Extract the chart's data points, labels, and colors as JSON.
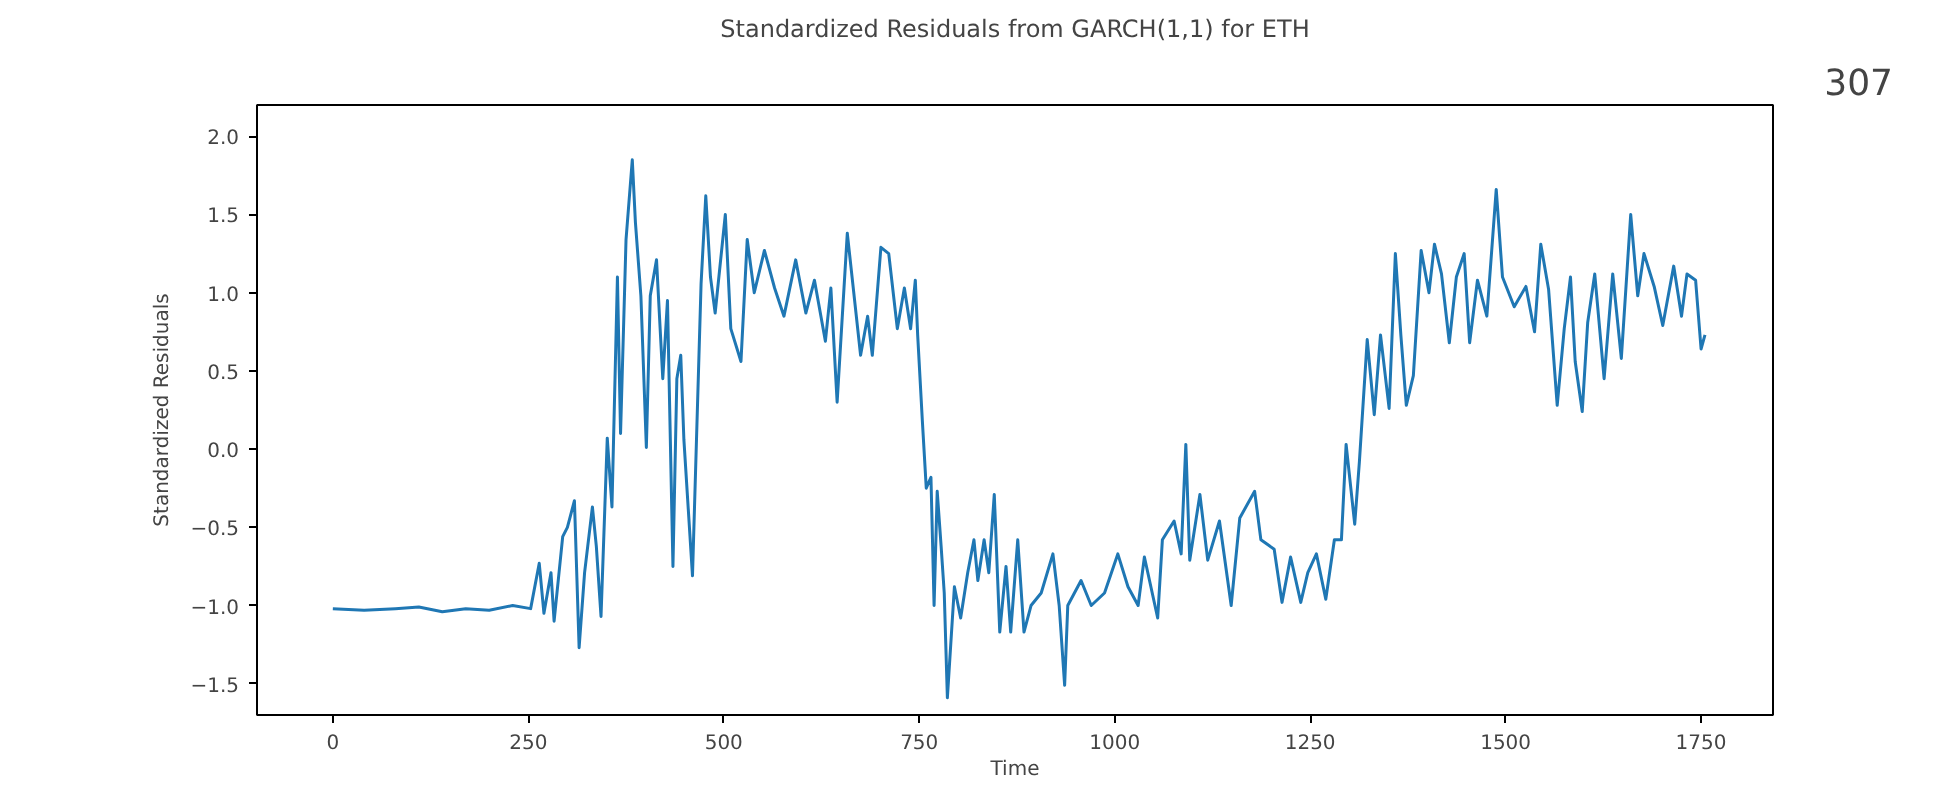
{
  "chart_data": {
    "type": "line",
    "title": "Standardized Residuals from GARCH(1,1) for ETH",
    "xlabel": "Time",
    "ylabel": "Standardized Residuals",
    "annotations": [
      "307"
    ],
    "x": [
      0,
      40,
      80,
      110,
      140,
      170,
      200,
      230,
      253,
      264,
      270,
      279,
      283,
      294,
      300,
      309,
      315,
      322,
      332,
      337,
      343,
      351,
      357,
      364,
      368,
      375,
      383,
      387,
      394,
      401,
      406,
      414,
      422,
      428,
      435,
      440,
      445,
      449,
      460,
      471,
      477,
      483,
      489,
      502,
      509,
      522,
      530,
      539,
      552,
      565,
      577,
      592,
      605,
      616,
      630,
      637,
      645,
      658,
      675,
      684,
      690,
      701,
      711,
      722,
      731,
      739,
      745,
      748,
      754,
      759,
      765,
      769,
      773,
      778,
      782,
      786,
      795,
      803,
      812,
      820,
      825,
      833,
      839,
      846,
      853,
      861,
      867,
      876,
      884,
      893,
      906,
      921,
      929,
      936,
      940,
      957,
      970,
      987,
      1004,
      1017,
      1030,
      1038,
      1055,
      1061,
      1076,
      1085,
      1091,
      1096,
      1109,
      1119,
      1134,
      1149,
      1160,
      1179,
      1187,
      1204,
      1214,
      1225,
      1238,
      1247,
      1258,
      1270,
      1281,
      1290,
      1296,
      1307,
      1313,
      1323,
      1332,
      1340,
      1351,
      1359,
      1366,
      1373,
      1382,
      1392,
      1402,
      1409,
      1418,
      1428,
      1437,
      1447,
      1454,
      1464,
      1476,
      1488,
      1496,
      1511,
      1526,
      1537,
      1545,
      1555,
      1566,
      1575,
      1583,
      1589,
      1598,
      1605,
      1614,
      1626,
      1637,
      1648,
      1660,
      1669,
      1677,
      1690,
      1701,
      1715,
      1725,
      1732,
      1743,
      1750,
      1755
    ],
    "series": [
      {
        "color": "#1f77b4",
        "values": [
          -1.02,
          -1.03,
          -1.02,
          -1.01,
          -1.04,
          -1.02,
          -1.03,
          -1.0,
          -1.02,
          -0.73,
          -1.05,
          -0.79,
          -1.1,
          -0.56,
          -0.5,
          -0.33,
          -1.27,
          -0.79,
          -0.37,
          -0.62,
          -1.07,
          0.07,
          -0.37,
          1.1,
          0.1,
          1.34,
          1.85,
          1.45,
          0.98,
          0.01,
          0.98,
          1.21,
          0.45,
          0.95,
          -0.75,
          0.45,
          0.6,
          0.06,
          -0.81,
          1.06,
          1.62,
          1.1,
          0.87,
          1.5,
          0.77,
          0.56,
          1.34,
          1.0,
          1.27,
          1.03,
          0.85,
          1.21,
          0.87,
          1.08,
          0.69,
          1.03,
          0.3,
          1.38,
          0.6,
          0.85,
          0.6,
          1.29,
          1.25,
          0.77,
          1.03,
          0.77,
          1.08,
          0.73,
          0.18,
          -0.25,
          -0.18,
          -1.0,
          -0.27,
          -0.62,
          -0.92,
          -1.59,
          -0.88,
          -1.08,
          -0.79,
          -0.58,
          -0.84,
          -0.58,
          -0.79,
          -0.29,
          -1.17,
          -0.75,
          -1.17,
          -0.58,
          -1.17,
          -1.0,
          -0.92,
          -0.67,
          -1.0,
          -1.51,
          -1.0,
          -0.84,
          -1.0,
          -0.92,
          -0.67,
          -0.88,
          -1.0,
          -0.69,
          -1.08,
          -0.58,
          -0.46,
          -0.67,
          0.03,
          -0.71,
          -0.29,
          -0.71,
          -0.46,
          -1.0,
          -0.44,
          -0.27,
          -0.58,
          -0.64,
          -0.98,
          -0.69,
          -0.98,
          -0.79,
          -0.67,
          -0.96,
          -0.58,
          -0.58,
          0.03,
          -0.48,
          -0.08,
          0.7,
          0.22,
          0.73,
          0.26,
          1.25,
          0.73,
          0.28,
          0.47,
          1.27,
          1.0,
          1.31,
          1.12,
          0.68,
          1.1,
          1.25,
          0.68,
          1.08,
          0.85,
          1.66,
          1.1,
          0.91,
          1.04,
          0.75,
          1.31,
          1.02,
          0.28,
          0.77,
          1.1,
          0.56,
          0.24,
          0.81,
          1.12,
          0.45,
          1.12,
          0.58,
          1.5,
          0.98,
          1.25,
          1.04,
          0.79,
          1.17,
          0.85,
          1.12,
          1.08,
          0.64,
          0.73
        ]
      }
    ],
    "xlim": [
      -97,
      1842
    ],
    "ylim": [
      -1.7,
      2.2
    ],
    "xticks": [
      0,
      250,
      500,
      750,
      1000,
      1250,
      1500,
      1750
    ],
    "yticks": [
      {
        "value": -1.5,
        "label": "−1.5"
      },
      {
        "value": -1.0,
        "label": "−1.0"
      },
      {
        "value": -0.5,
        "label": "−0.5"
      },
      {
        "value": 0,
        "label": "0.0"
      },
      {
        "value": 0.5,
        "label": "0.5"
      },
      {
        "value": 1.0,
        "label": "1.0"
      },
      {
        "value": 1.5,
        "label": "1.5"
      },
      {
        "value": 2.0,
        "label": "2.0"
      }
    ],
    "grid": false
  }
}
